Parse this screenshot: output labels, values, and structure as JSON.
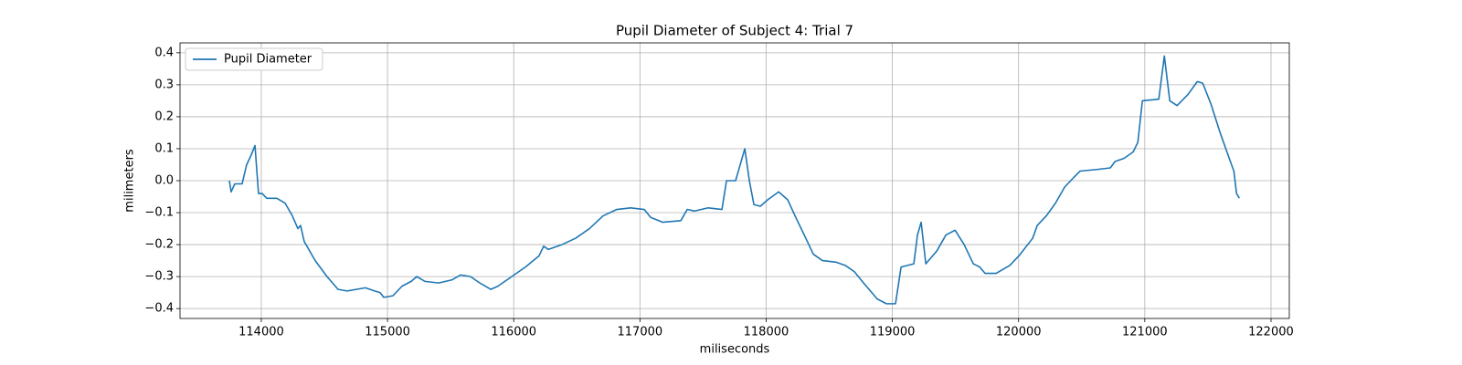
{
  "chart_data": {
    "type": "line",
    "title": "Pupil Diameter of Subject 4: Trial 7",
    "x_label": "miliseconds",
    "y_label": "milimeters",
    "xlim": [
      113356,
      122145
    ],
    "ylim": [
      -0.431,
      0.431
    ],
    "xticks": [
      114000,
      115000,
      116000,
      117000,
      118000,
      119000,
      120000,
      121000,
      122000
    ],
    "yticks": [
      {
        "value": -0.4,
        "label": "−0.4"
      },
      {
        "value": -0.3,
        "label": "−0.3"
      },
      {
        "value": -0.2,
        "label": "−0.2"
      },
      {
        "value": -0.1,
        "label": "−0.1"
      },
      {
        "value": 0,
        "label": "0.0"
      },
      0.1,
      0.2,
      0.3,
      0.4
    ],
    "grid": true,
    "legend": "upper left",
    "series": [
      {
        "name": "Pupil Diameter",
        "color": "#1f77b4",
        "x": [
          113747,
          113761,
          113790,
          113848,
          113884,
          113920,
          113950,
          113978,
          114007,
          114043,
          114123,
          114188,
          114246,
          114290,
          114311,
          114340,
          114427,
          114521,
          114608,
          114681,
          114753,
          114825,
          114898,
          114941,
          114970,
          115043,
          115115,
          115188,
          115231,
          115296,
          115405,
          115513,
          115579,
          115658,
          115731,
          115818,
          115875,
          115984,
          116093,
          116201,
          116237,
          116274,
          116382,
          116491,
          116600,
          116708,
          116817,
          116925,
          117034,
          117085,
          117179,
          117324,
          117375,
          117432,
          117541,
          117650,
          117686,
          117758,
          117831,
          117867,
          117903,
          117954,
          118012,
          118099,
          118171,
          118229,
          118302,
          118374,
          118446,
          118555,
          118627,
          118700,
          118772,
          118880,
          118953,
          119025,
          119069,
          119170,
          119199,
          119228,
          119265,
          119352,
          119424,
          119497,
          119569,
          119641,
          119692,
          119735,
          119822,
          119931,
          120003,
          120112,
          120148,
          120220,
          120293,
          120365,
          120437,
          120488,
          120619,
          120727,
          120764,
          120836,
          120908,
          120945,
          120981,
          121111,
          121155,
          121198,
          121256,
          121343,
          121416,
          121459,
          121524,
          121597,
          121669,
          121706,
          121727,
          121749
        ],
        "values": [
          0.0,
          -0.035,
          -0.01,
          -0.01,
          0.05,
          0.08,
          0.11,
          -0.04,
          -0.04,
          -0.055,
          -0.055,
          -0.07,
          -0.11,
          -0.15,
          -0.14,
          -0.19,
          -0.25,
          -0.3,
          -0.34,
          -0.345,
          -0.34,
          -0.335,
          -0.345,
          -0.35,
          -0.365,
          -0.36,
          -0.33,
          -0.315,
          -0.3,
          -0.315,
          -0.32,
          -0.31,
          -0.295,
          -0.3,
          -0.32,
          -0.34,
          -0.33,
          -0.3,
          -0.27,
          -0.235,
          -0.205,
          -0.215,
          -0.2,
          -0.18,
          -0.15,
          -0.11,
          -0.09,
          -0.085,
          -0.09,
          -0.115,
          -0.13,
          -0.125,
          -0.09,
          -0.095,
          -0.085,
          -0.09,
          0.0,
          0.0,
          0.1,
          0.0,
          -0.075,
          -0.08,
          -0.06,
          -0.035,
          -0.06,
          -0.11,
          -0.17,
          -0.23,
          -0.25,
          -0.255,
          -0.265,
          -0.285,
          -0.32,
          -0.37,
          -0.385,
          -0.385,
          -0.27,
          -0.26,
          -0.17,
          -0.13,
          -0.26,
          -0.22,
          -0.17,
          -0.155,
          -0.2,
          -0.26,
          -0.27,
          -0.29,
          -0.29,
          -0.265,
          -0.235,
          -0.18,
          -0.14,
          -0.11,
          -0.07,
          -0.02,
          0.01,
          0.03,
          0.035,
          0.04,
          0.06,
          0.07,
          0.09,
          0.12,
          0.25,
          0.255,
          0.39,
          0.25,
          0.235,
          0.27,
          0.31,
          0.305,
          0.24,
          0.15,
          0.07,
          0.03,
          -0.04,
          -0.055
        ]
      }
    ]
  }
}
